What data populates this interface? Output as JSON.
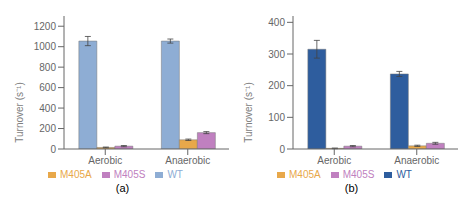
{
  "chart_data": [
    {
      "type": "bar",
      "title": "(a)",
      "categories": [
        "Aerobic",
        "Anaerobic"
      ],
      "series": [
        {
          "name": "WT",
          "color": "#8eadd4",
          "values": [
            1055,
            1055
          ],
          "errors": [
            45,
            20
          ]
        },
        {
          "name": "M405A",
          "color": "#e8a84a",
          "values": [
            15,
            90
          ],
          "errors": [
            4,
            7
          ]
        },
        {
          "name": "M405S",
          "color": "#c080c0",
          "values": [
            28,
            160
          ],
          "errors": [
            6,
            10
          ]
        }
      ],
      "y_label": "Turnover (s⁻¹)",
      "ylim": [
        0,
        1300
      ],
      "yticks": [
        0,
        200,
        400,
        600,
        800,
        1000,
        1200
      ],
      "legend": "bottom"
    },
    {
      "type": "bar",
      "title": "(b)",
      "categories": [
        "Aerobic",
        "Anaerobic"
      ],
      "series": [
        {
          "name": "WT",
          "color": "#2e5d9e",
          "values": [
            315,
            237
          ],
          "errors": [
            28,
            8
          ]
        },
        {
          "name": "M405A",
          "color": "#e8a84a",
          "values": [
            2,
            10
          ],
          "errors": [
            1,
            2
          ]
        },
        {
          "name": "M405S",
          "color": "#c080c0",
          "values": [
            9,
            18
          ],
          "errors": [
            2,
            3
          ]
        }
      ],
      "y_label": "Turnover (s⁻¹)",
      "ylim": [
        0,
        420
      ],
      "yticks": [
        0,
        100,
        200,
        300,
        400
      ],
      "legend": "bottom"
    }
  ]
}
